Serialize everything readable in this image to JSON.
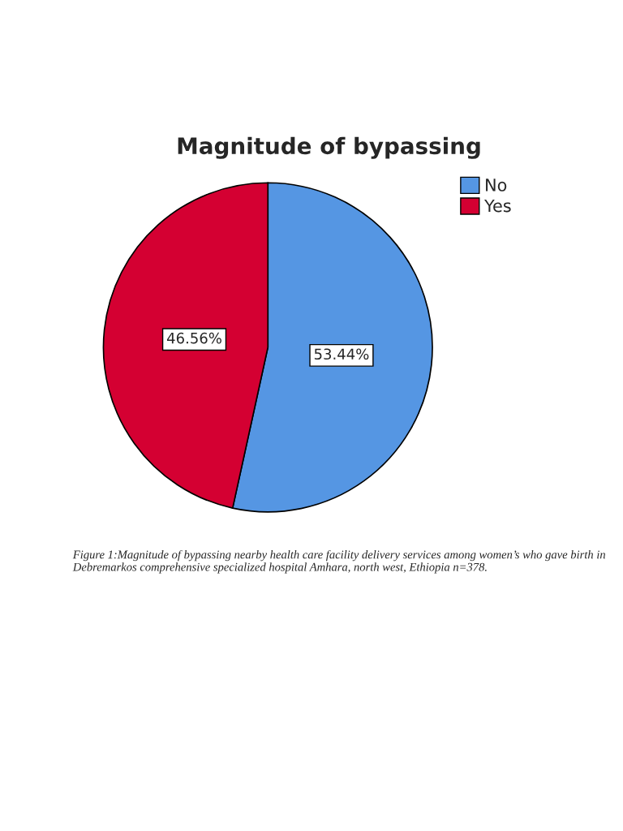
{
  "chart_data": {
    "type": "pie",
    "title": "Magnitude of bypassing",
    "categories": [
      "No",
      "Yes"
    ],
    "values": [
      53.44,
      46.56
    ],
    "colors": [
      "#5596e3",
      "#d40032"
    ],
    "value_labels": [
      "53.44%",
      "46.56%"
    ],
    "legend": "top right",
    "annotations": [
      "Figure 1:Magnitude of bypassing nearby health care facility delivery services among women’s who gave birth in Debremarkos comprehensive specialized hospital Amhara, north west, Ethiopia n=378."
    ]
  }
}
